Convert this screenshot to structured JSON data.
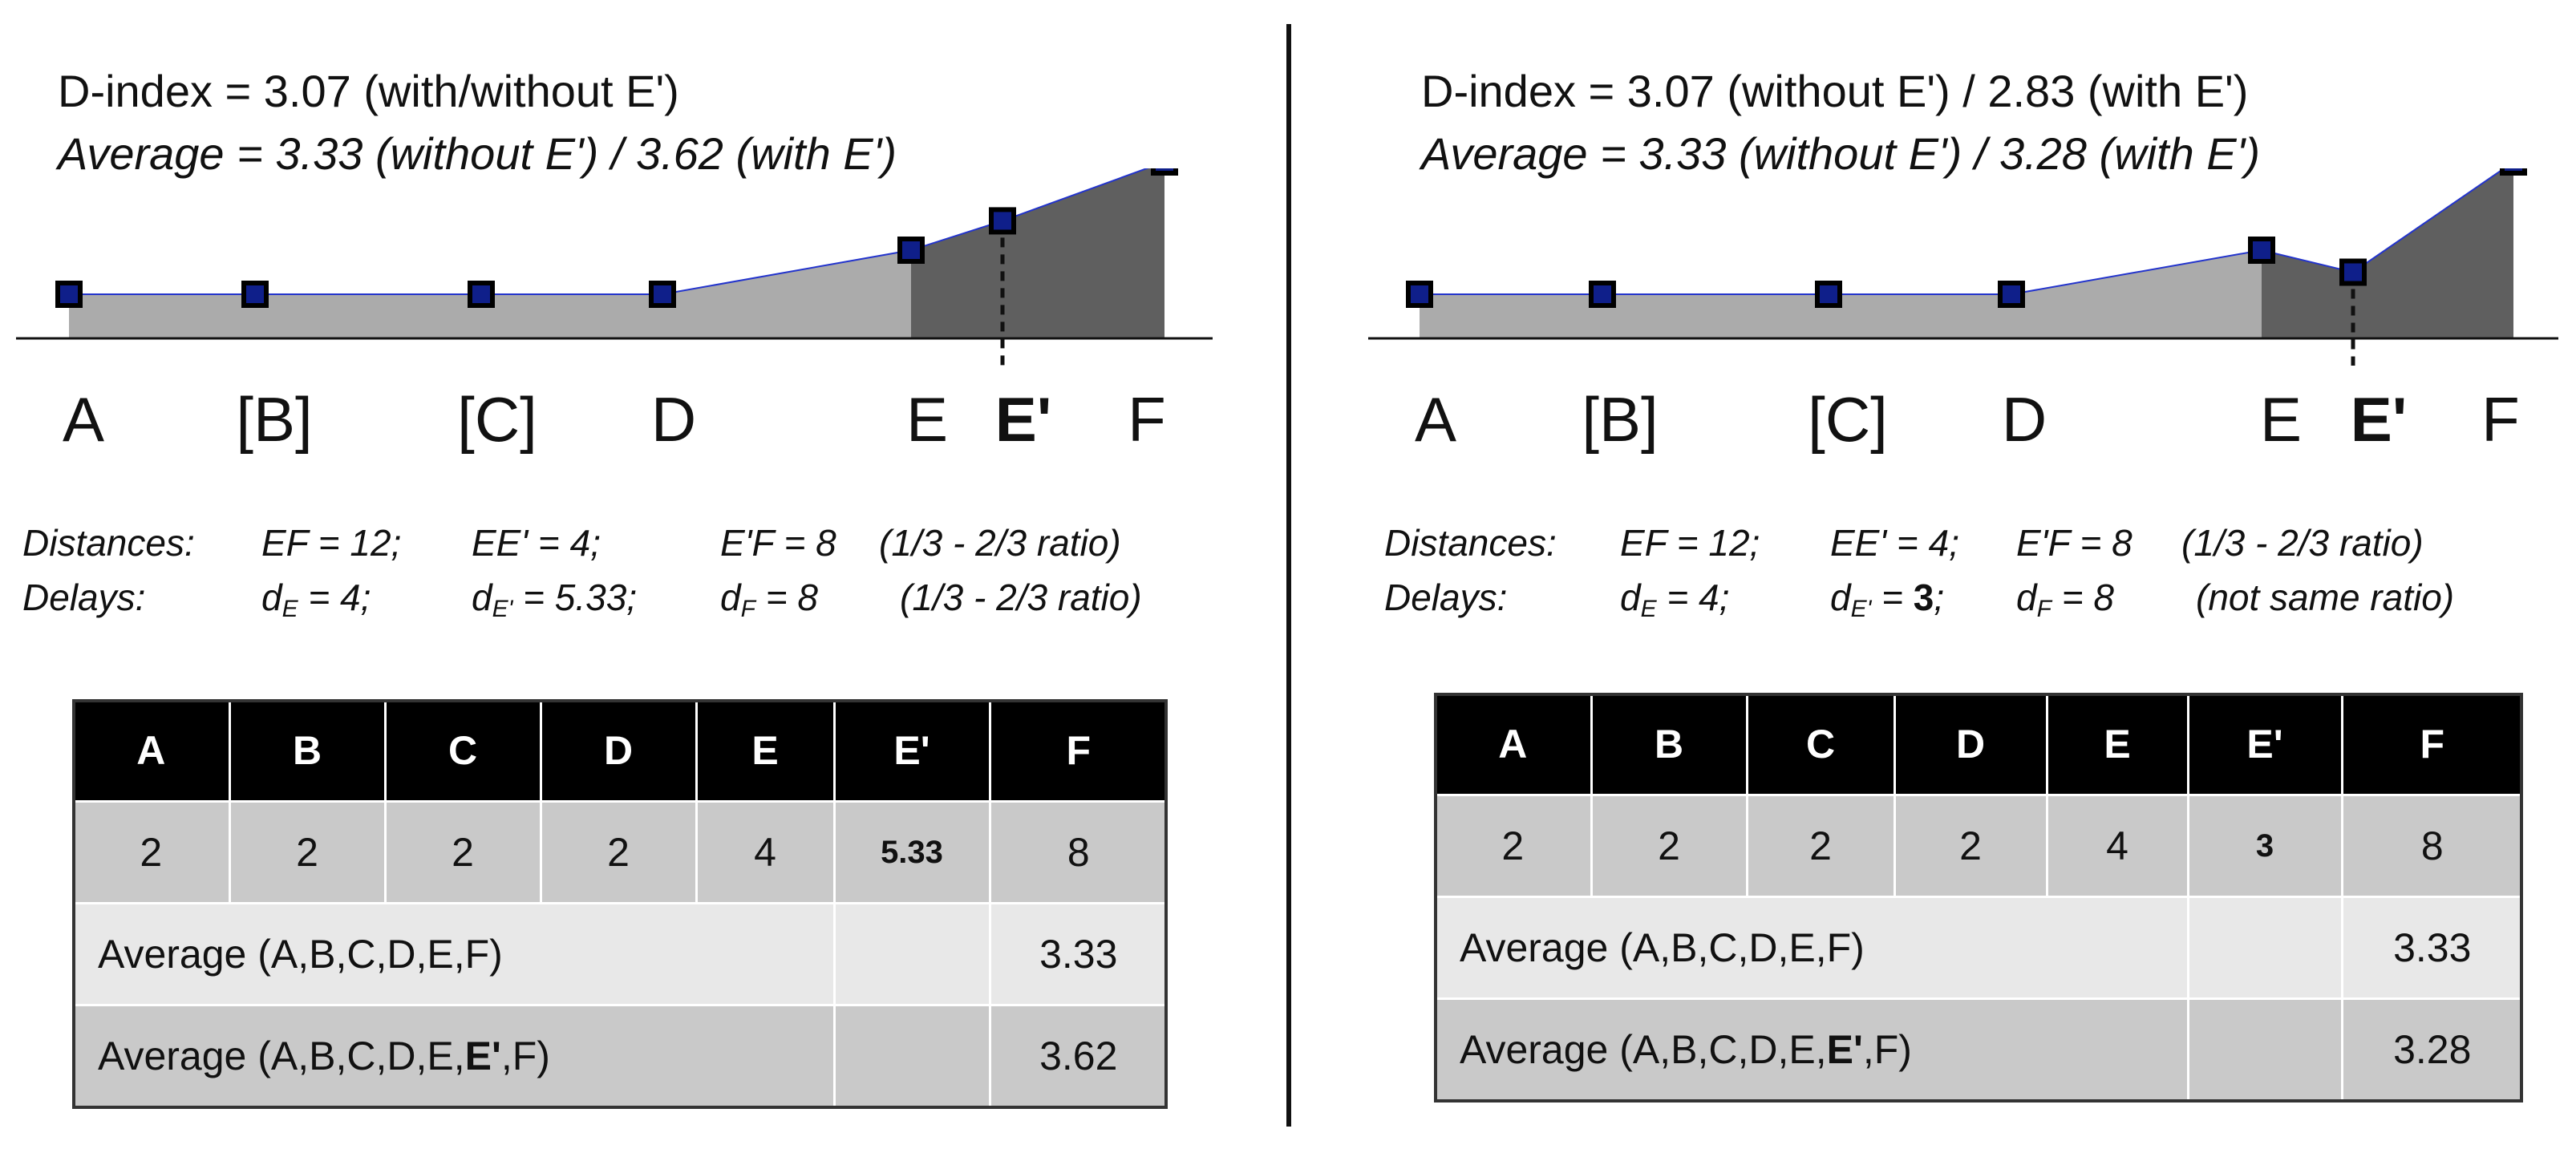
{
  "panels": [
    {
      "header_line1": "D-index  = 3.07 (with/without E')",
      "header_line2": "Average = 3.33 (without E') / 3.62 (with E')",
      "axis_labels": [
        "A",
        "[B]",
        "[C]",
        "D",
        "E",
        "E'",
        "F"
      ],
      "distances_label": "Distances:",
      "distances_values": [
        "EF = 12;",
        "EE' = 4;",
        "E'F = 8",
        "(1/3 - 2/3 ratio)"
      ],
      "delays_label": "Delays:",
      "delays_values": {
        "dE_name": "d",
        "dE_sub": "E",
        "dE_val": " = 4;",
        "dEp_name": "d",
        "dEp_sub": "E'",
        "dEp_val": " = 5.33;",
        "dF_name": "d",
        "dF_sub": "F",
        "dF_val": " = 8",
        "ratio": "(1/3 - 2/3 ratio)"
      },
      "table": {
        "headers": [
          "A",
          "B",
          "C",
          "D",
          "E",
          "E'",
          "F"
        ],
        "values": [
          "2",
          "2",
          "2",
          "2",
          "4",
          "5.33",
          "8"
        ],
        "avg1_label": "Average (A,B,C,D,E,F)",
        "avg1_value": "3.33",
        "avg2_label_pre": "Average (A,B,C,D,E,",
        "avg2_label_bold": "E'",
        "avg2_label_post": ",F)",
        "avg2_value": "3.62"
      },
      "delays": [
        2,
        2,
        2,
        2,
        4,
        5.33,
        8
      ]
    },
    {
      "header_line1": "D-index  = 3.07 (without E') / 2.83 (with E')",
      "header_line2": "Average = 3.33 (without E') / 3.28 (with E')",
      "axis_labels": [
        "A",
        "[B]",
        "[C]",
        "D",
        "E",
        "E'",
        "F"
      ],
      "distances_label": "Distances:",
      "distances_values": [
        "EF = 12;",
        "EE' = 4;",
        "E'F = 8",
        "(1/3 - 2/3 ratio)"
      ],
      "delays_label": "Delays:",
      "delays_values": {
        "dE_name": "d",
        "dE_sub": "E",
        "dE_val": " = 4;",
        "dEp_name": "d",
        "dEp_sub": "E'",
        "dEp_val": " =  ",
        "dEp_bold": "3",
        "dEp_tail": ";",
        "dF_name": "d",
        "dF_sub": "F",
        "dF_val": " = 8",
        "ratio": "(not same ratio)"
      },
      "table": {
        "headers": [
          "A",
          "B",
          "C",
          "D",
          "E",
          "E'",
          "F"
        ],
        "values": [
          "2",
          "2",
          "2",
          "2",
          "4",
          "3",
          "8"
        ],
        "avg1_label": "Average (A,B,C,D,E,F)",
        "avg1_value": "3.33",
        "avg2_label_pre": "Average (A,B,C,D,E,",
        "avg2_label_bold": "E'",
        "avg2_label_post": ",F)",
        "avg2_value": "3.28"
      },
      "delays": [
        2,
        2,
        2,
        2,
        4,
        3,
        8
      ]
    }
  ],
  "colors": {
    "light_area": "#ababab",
    "dark_area": "#5f5f5f",
    "marker_fill": "#0f1f8a",
    "marker_stroke": "#000000",
    "line": "#2233cc"
  }
}
